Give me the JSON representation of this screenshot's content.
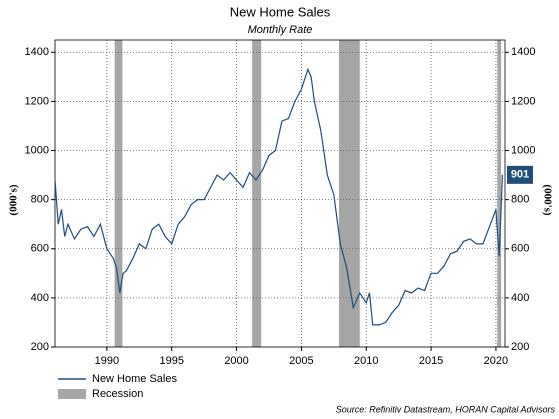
{
  "chart_data": {
    "type": "line",
    "title": "New Home Sales",
    "subtitle": "Monthly Rate",
    "ylabel": "(000's)",
    "y2label": "(000's)",
    "source": "Source: Refinitiv Datastream, HORAN Capital Advisors",
    "x": [
      1986.0,
      1986.25,
      1986.5,
      1986.75,
      1987.0,
      1987.5,
      1988.0,
      1988.5,
      1989.0,
      1989.5,
      1990.0,
      1990.5,
      1990.75,
      1991.0,
      1991.25,
      1991.5,
      1992.0,
      1992.5,
      1993.0,
      1993.5,
      1994.0,
      1994.5,
      1995.0,
      1995.5,
      1996.0,
      1996.5,
      1997.0,
      1997.5,
      1998.0,
      1998.5,
      1999.0,
      1999.5,
      2000.0,
      2000.5,
      2001.0,
      2001.5,
      2002.0,
      2002.5,
      2003.0,
      2003.5,
      2004.0,
      2004.5,
      2005.0,
      2005.5,
      2005.75,
      2006.0,
      2006.5,
      2007.0,
      2007.5,
      2008.0,
      2008.5,
      2009.0,
      2009.5,
      2010.0,
      2010.25,
      2010.5,
      2011.0,
      2011.5,
      2012.0,
      2012.5,
      2013.0,
      2013.5,
      2014.0,
      2014.5,
      2015.0,
      2015.5,
      2016.0,
      2016.5,
      2017.0,
      2017.5,
      2018.0,
      2018.5,
      2019.0,
      2019.5,
      2020.0,
      2020.25,
      2020.5
    ],
    "series": [
      {
        "name": "New Home Sales",
        "color": "#1f4e79",
        "values": [
          880,
          700,
          760,
          650,
          700,
          640,
          680,
          690,
          650,
          700,
          600,
          560,
          520,
          420,
          500,
          510,
          560,
          620,
          600,
          680,
          700,
          650,
          620,
          700,
          730,
          780,
          800,
          800,
          850,
          900,
          880,
          910,
          880,
          850,
          910,
          880,
          920,
          980,
          1000,
          1120,
          1130,
          1200,
          1250,
          1330,
          1300,
          1200,
          1080,
          900,
          820,
          620,
          520,
          360,
          420,
          380,
          420,
          290,
          290,
          300,
          340,
          370,
          430,
          420,
          440,
          430,
          500,
          500,
          530,
          580,
          590,
          630,
          640,
          620,
          620,
          690,
          760,
          570,
          901
        ]
      }
    ],
    "recessions": {
      "name": "Recession",
      "color": "#a6a6a6",
      "start": [
        1990.6,
        2001.2,
        2007.9,
        2020.1
      ],
      "end": [
        1991.2,
        2001.9,
        2009.5,
        2020.4
      ]
    },
    "xlim": [
      1986,
      2020.7
    ],
    "xticks": [
      1990,
      1995,
      2000,
      2005,
      2010,
      2015,
      2020
    ],
    "ylim": [
      200,
      1450
    ],
    "yticks": [
      200,
      400,
      600,
      800,
      1000,
      1200,
      1400
    ],
    "y2lim": [
      200,
      1450
    ],
    "y2ticks": [
      200,
      400,
      600,
      800,
      1000,
      1200,
      1400
    ],
    "grid": true
  }
}
